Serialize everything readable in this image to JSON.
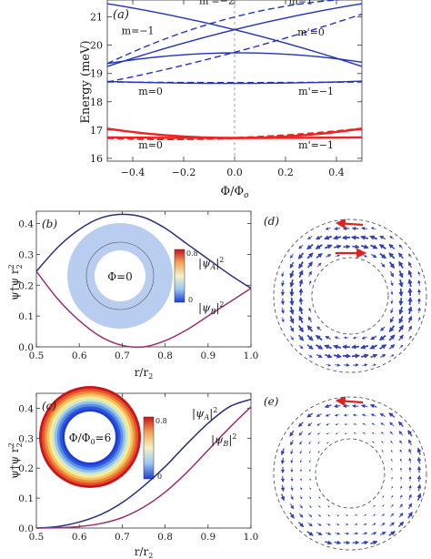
{
  "chart_data": [
    {
      "panel": "(a)",
      "type": "line",
      "xlabel": "Φ/Φ",
      "xlabel_sub": "o",
      "ylabel": "Energy (meV)",
      "xlim": [
        -0.5,
        0.5
      ],
      "ylim": [
        15.9,
        21.6
      ],
      "xticks": [
        "-0.4",
        "-0.2",
        "0.0",
        "0.2",
        "0.4"
      ],
      "yticks": [
        "16",
        "17",
        "18",
        "19",
        "20",
        "21"
      ],
      "colors": {
        "upper": "#2233bb",
        "lower": "#ee2222"
      },
      "dashed_vline_x": 0,
      "series": [
        {
          "style": "solid",
          "color": "upper",
          "x": [
            -0.5,
            0.0,
            0.5
          ],
          "y": [
            21.47,
            20.55,
            19.25
          ]
        },
        {
          "style": "solid",
          "color": "upper",
          "x": [
            -0.5,
            0.0,
            0.5
          ],
          "y": [
            19.25,
            20.55,
            21.47
          ]
        },
        {
          "style": "solid",
          "color": "upper",
          "x": [
            -0.5,
            0.0,
            0.5
          ],
          "y": [
            19.35,
            19.73,
            19.4
          ]
        },
        {
          "style": "solid",
          "color": "upper",
          "x": [
            -0.5,
            0.0,
            0.5
          ],
          "y": [
            18.72,
            18.65,
            18.73
          ]
        },
        {
          "style": "dashed",
          "color": "upper",
          "x": [
            -0.5,
            0.0,
            0.5
          ],
          "y": [
            19.35,
            21.0,
            21.65
          ]
        },
        {
          "style": "dashed",
          "color": "upper",
          "x": [
            -0.5,
            0.0,
            0.5
          ],
          "y": [
            18.7,
            19.75,
            21.1
          ]
        },
        {
          "style": "dashed",
          "color": "upper",
          "x": [
            -0.5,
            0.0,
            0.5
          ],
          "y": [
            18.7,
            18.68,
            18.7
          ]
        },
        {
          "style": "solid",
          "color": "lower",
          "x": [
            -0.5,
            0.0,
            0.5
          ],
          "y": [
            17.05,
            16.72,
            17.05
          ]
        },
        {
          "style": "dashed",
          "color": "lower",
          "x": [
            -0.5,
            0.0,
            0.5
          ],
          "y": [
            16.72,
            16.72,
            17.05
          ]
        },
        {
          "style": "solid",
          "color": "lower",
          "x": [
            -0.5,
            0.0,
            0.5
          ],
          "y": [
            16.74,
            16.72,
            16.74
          ]
        }
      ],
      "annotations": [
        {
          "text": "m'=−2",
          "x": -0.07,
          "y": 21.45
        },
        {
          "text": "m=1",
          "x": 0.26,
          "y": 21.45
        },
        {
          "text": "m=−1",
          "x": -0.38,
          "y": 20.4
        },
        {
          "text": "m'=0",
          "x": 0.3,
          "y": 20.35
        },
        {
          "text": "m=0",
          "x": -0.33,
          "y": 18.25
        },
        {
          "text": "m'=−1",
          "x": 0.32,
          "y": 18.25
        },
        {
          "text": "m=0",
          "x": -0.33,
          "y": 16.35
        },
        {
          "text": "m'=−1",
          "x": 0.32,
          "y": 16.35
        }
      ]
    },
    {
      "panel": "(b)",
      "type": "line",
      "xlabel": "r/r",
      "xlabel_sub": "2",
      "ylabel": "ψ†ψ r",
      "ylabel_sup": "2",
      "ylabel_sub": "2",
      "xlim": [
        0.5,
        1.0
      ],
      "ylim": [
        0.0,
        0.44
      ],
      "xticks": [
        "0.5",
        "0.6",
        "0.7",
        "0.8",
        "0.9",
        "1.0"
      ],
      "yticks": [
        "0.0",
        "0.1",
        "0.2",
        "0.3",
        "0.4"
      ],
      "series": [
        {
          "name": "|ψ",
          "sub": "A",
          "color": "#27317a",
          "x": [
            0.5,
            0.55,
            0.6,
            0.65,
            0.7,
            0.75,
            0.8,
            0.85,
            0.9,
            0.95,
            1.0
          ],
          "y": [
            0.245,
            0.323,
            0.381,
            0.418,
            0.43,
            0.42,
            0.385,
            0.335,
            0.285,
            0.235,
            0.19
          ]
        },
        {
          "name": "|ψ",
          "sub": "B",
          "color": "#9a2f6e",
          "x": [
            0.5,
            0.55,
            0.6,
            0.65,
            0.7,
            0.75,
            0.8,
            0.85,
            0.9,
            0.95,
            1.0
          ],
          "y": [
            0.245,
            0.155,
            0.085,
            0.033,
            0.005,
            0.0,
            0.02,
            0.055,
            0.1,
            0.145,
            0.19
          ]
        }
      ],
      "inset": {
        "label": "Φ=0",
        "colorbar_max": "0.8",
        "colorbar_min": "0"
      }
    },
    {
      "panel": "(c)",
      "type": "line",
      "xlabel": "r/r",
      "xlabel_sub": "2",
      "ylabel": "ψ†ψ r",
      "ylabel_sup": "2",
      "ylabel_sub": "2",
      "xlim": [
        0.5,
        1.0
      ],
      "ylim": [
        0.0,
        0.45
      ],
      "xticks": [
        "0.5",
        "0.6",
        "0.7",
        "0.8",
        "0.9",
        "1.0"
      ],
      "yticks": [
        "0.0",
        "0.1",
        "0.2",
        "0.3",
        "0.4"
      ],
      "series": [
        {
          "name": "|ψ",
          "sub": "A",
          "color": "#27317a",
          "x": [
            0.5,
            0.55,
            0.6,
            0.65,
            0.7,
            0.75,
            0.8,
            0.85,
            0.9,
            0.95,
            1.0
          ],
          "y": [
            0.0,
            0.005,
            0.02,
            0.045,
            0.085,
            0.14,
            0.205,
            0.28,
            0.35,
            0.405,
            0.43
          ]
        },
        {
          "name": "|ψ",
          "sub": "B",
          "color": "#9a2f6e",
          "x": [
            0.5,
            0.55,
            0.6,
            0.65,
            0.7,
            0.75,
            0.8,
            0.85,
            0.9,
            0.95,
            1.0
          ],
          "y": [
            0.0,
            0.001,
            0.005,
            0.015,
            0.035,
            0.07,
            0.12,
            0.185,
            0.26,
            0.335,
            0.405
          ]
        }
      ],
      "inset": {
        "label": "Φ/Φ",
        "label_sub": "0",
        "label_tail": "=6",
        "colorbar_max": "0.8",
        "colorbar_min": "0"
      }
    },
    {
      "panel": "(d)",
      "type": "vector-field",
      "colors": {
        "arrows": "#3040b8",
        "highlight": "#dd2222"
      }
    },
    {
      "panel": "(e)",
      "type": "vector-field",
      "colors": {
        "arrows": "#3040b8",
        "highlight": "#dd2222"
      }
    }
  ]
}
